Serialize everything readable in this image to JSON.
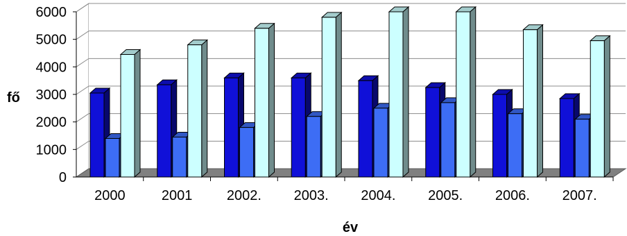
{
  "chart_data": {
    "type": "bar",
    "style": "3d-clustered-column",
    "categories": [
      "2000",
      "2001",
      "2002.",
      "2003.",
      "2004.",
      "2005.",
      "2006.",
      "2007."
    ],
    "series": [
      {
        "values": [
          3050,
          3350,
          3600,
          3600,
          3500,
          3250,
          3000,
          2850
        ],
        "color": "#1010d8"
      },
      {
        "values": [
          1400,
          1450,
          1800,
          2200,
          2500,
          2700,
          2300,
          2100
        ],
        "color": "#3d6df5"
      },
      {
        "values": [
          4450,
          4800,
          5400,
          5800,
          6000,
          6000,
          5350,
          4950
        ],
        "color": "#ccffff"
      }
    ],
    "xlabel": "év",
    "ylabel": "fő",
    "ylim": [
      0,
      6000
    ],
    "yticks": [
      "0",
      "1000",
      "2000",
      "3000",
      "4000",
      "5000",
      "6000"
    ],
    "grid": true,
    "legend": "none"
  }
}
